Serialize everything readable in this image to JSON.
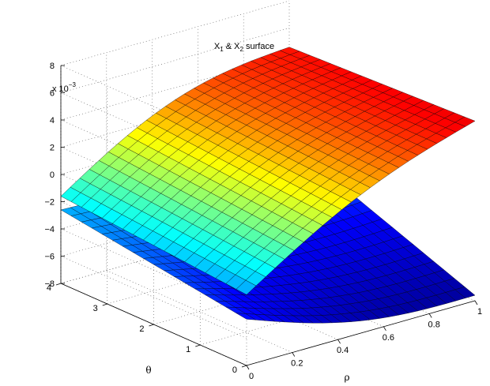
{
  "chart_data": {
    "type": "surface",
    "title": {
      "prefix": "X",
      "sub1": "1",
      "mid": " & X",
      "sub2": "2",
      "suffix": " surface"
    },
    "xlabel": "ρ",
    "ylabel": "θ",
    "zlabel": "",
    "z_multiplier": {
      "base": "x 10",
      "exponent": "−3"
    },
    "xlim": [
      0,
      1
    ],
    "ylim": [
      0,
      4
    ],
    "zlim": [
      -8,
      8
    ],
    "x_ticks": [
      "0",
      "0.2",
      "0.4",
      "0.6",
      "0.8",
      "1"
    ],
    "y_ticks": [
      "0",
      "1",
      "2",
      "3",
      "4"
    ],
    "z_ticks": [
      "−8",
      "−6",
      "−4",
      "−2",
      "0",
      "2",
      "4",
      "6",
      "8"
    ],
    "grid": true,
    "colormap": [
      "#00008f",
      "#0000ff",
      "#00ffff",
      "#ffff00",
      "#ff0000",
      "#800000"
    ],
    "series": [
      {
        "name": "X1",
        "corners": {
          "rho0_theta0": -2.8,
          "rho0_theta4": -1.6,
          "rho1_theta0": 5.2,
          "rho1_theta4": 4.6
        }
      },
      {
        "name": "X2",
        "corners": {
          "rho0_theta0": -4.6,
          "rho0_theta4": -2.6,
          "rho1_theta0": -7.6,
          "rho1_theta4": -3.2
        }
      }
    ]
  }
}
